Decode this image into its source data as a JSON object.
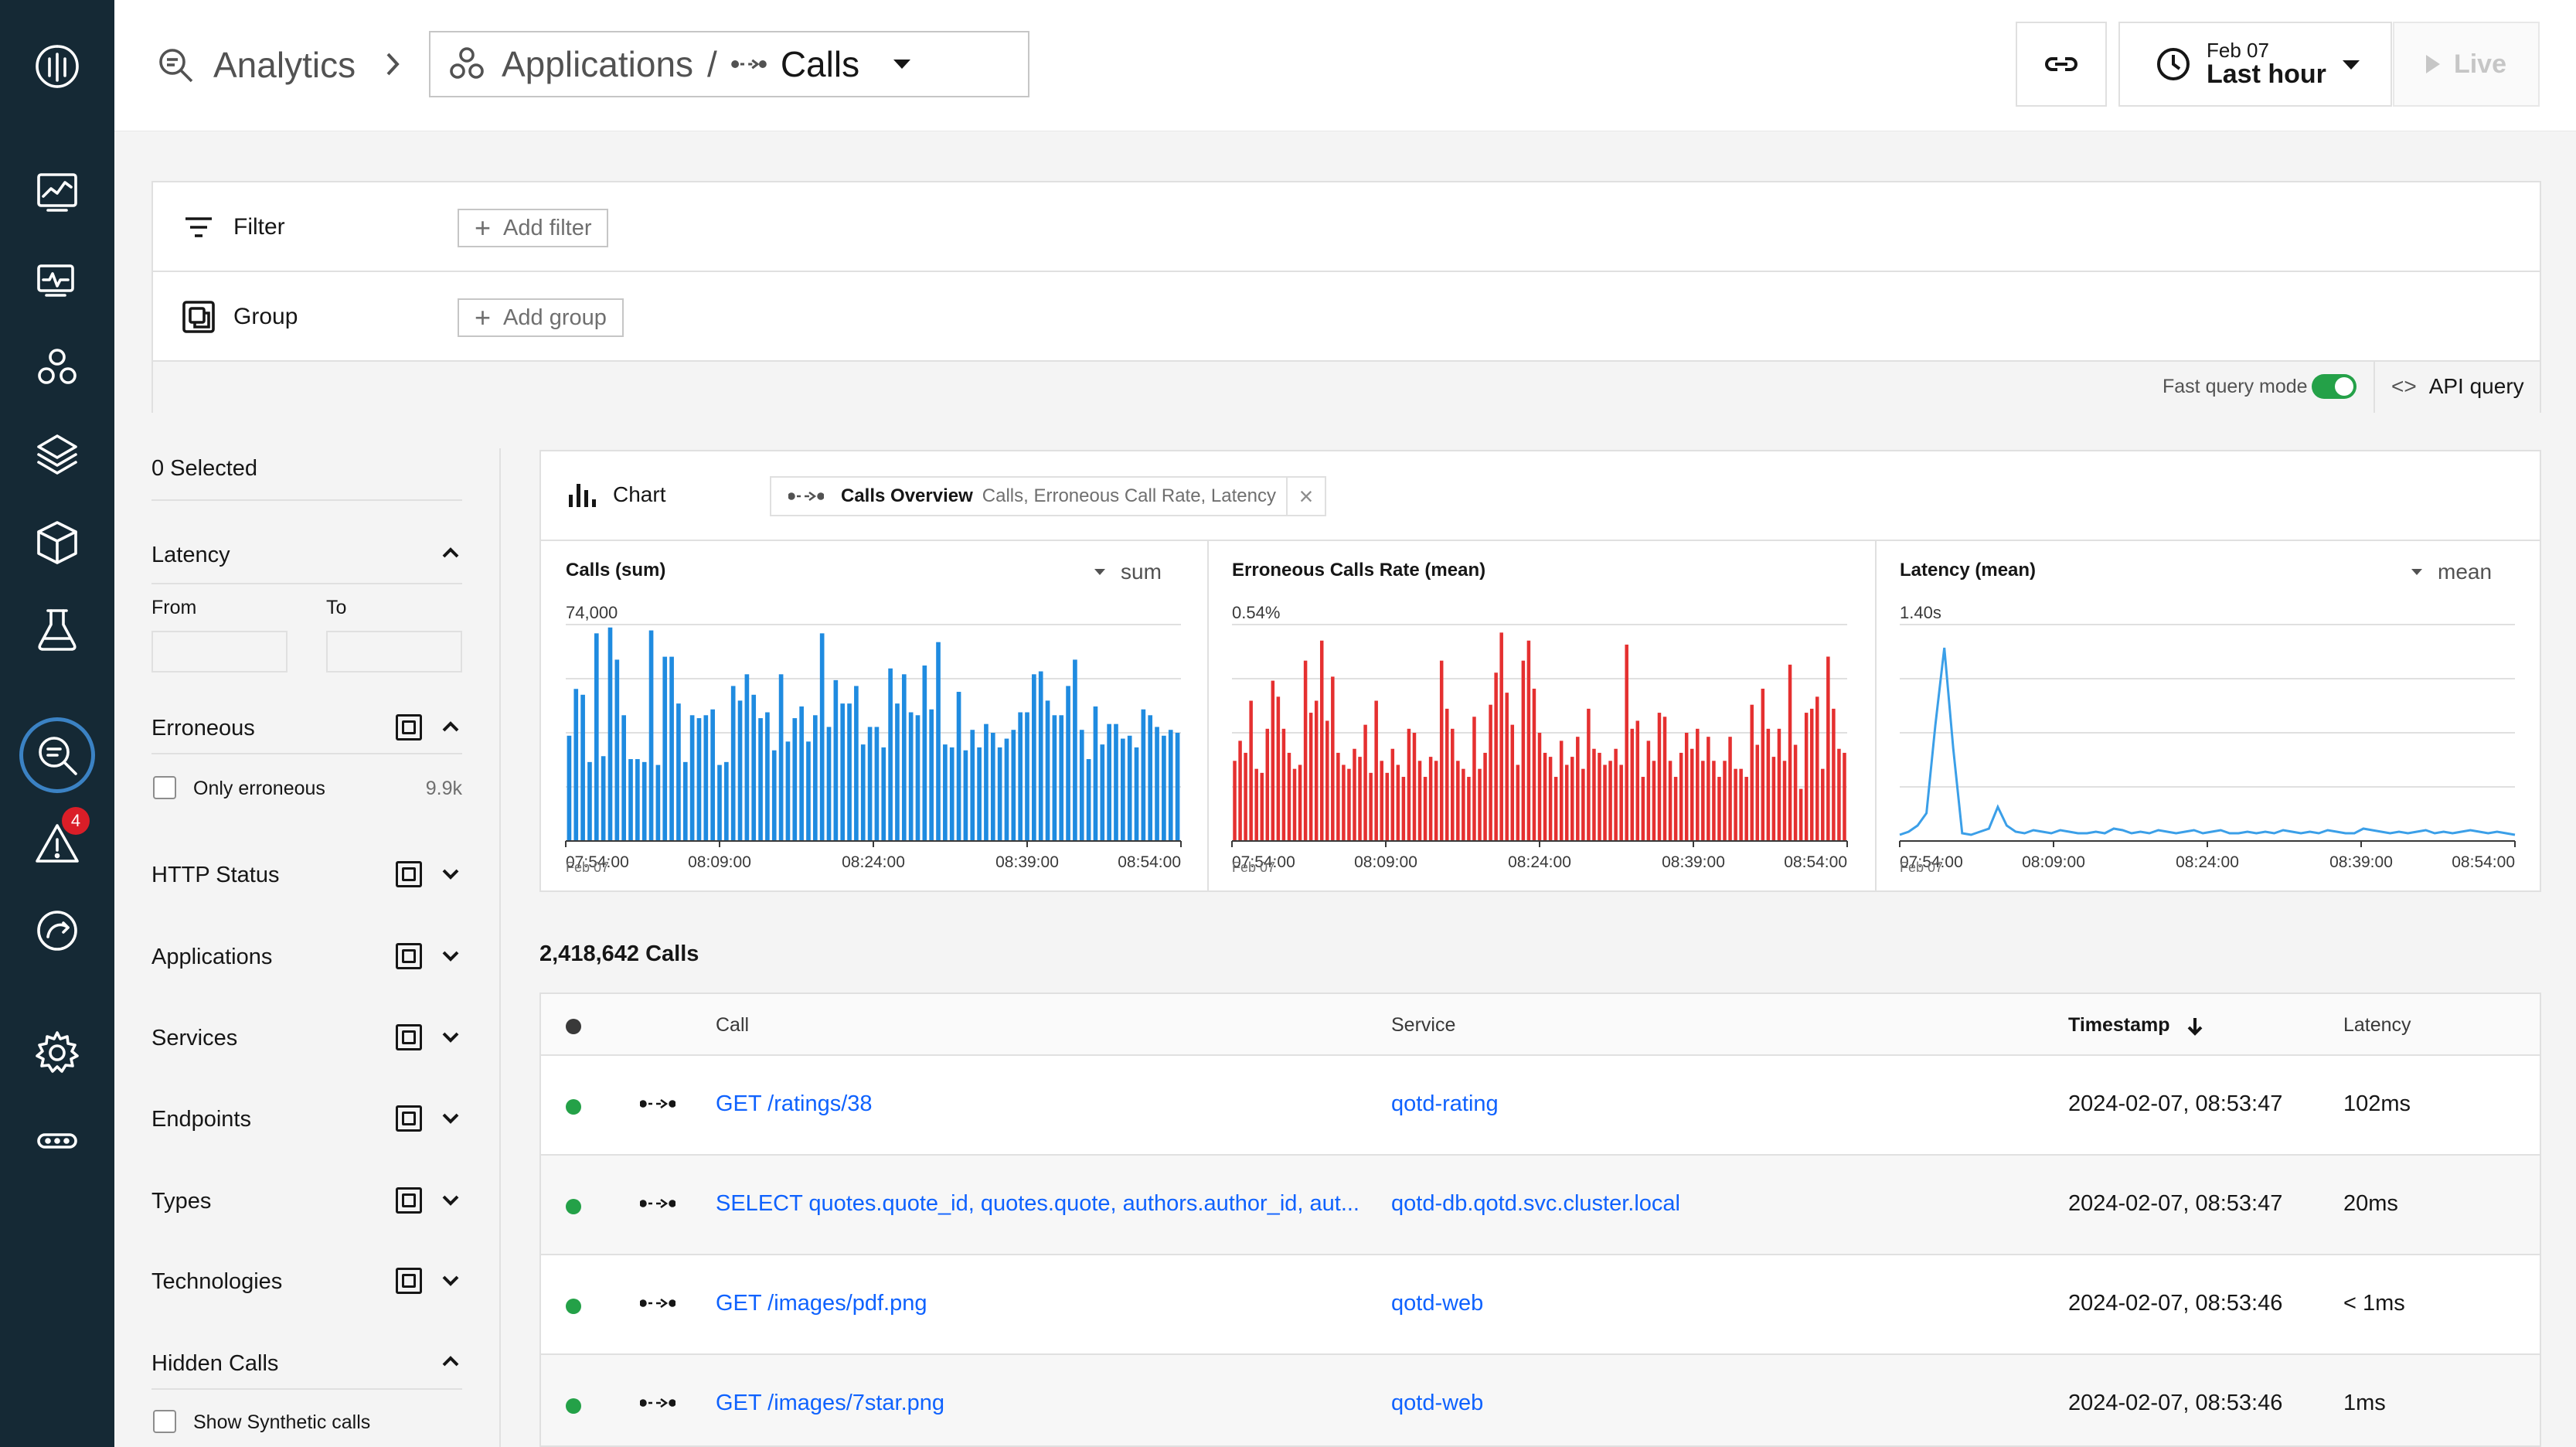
{
  "nav": {
    "items": [
      "Home dashboard",
      "Websites & Mobile Apps",
      "Applications",
      "Platforms",
      "Infrastructure",
      "Synthetic Monitoring",
      "Analytics",
      "Events",
      "Pipeline feedback",
      "Settings",
      "More"
    ],
    "events_badge": "4"
  },
  "header": {
    "breadcrumb_root": "Analytics",
    "app_label": "Applications",
    "separator": "/",
    "entity_label": "Calls",
    "time_date": "Feb 07",
    "time_range": "Last hour",
    "live_label": "Live"
  },
  "filters": {
    "filter_label": "Filter",
    "add_filter": "Add filter",
    "group_label": "Group",
    "add_group": "Add group",
    "fast_query_label": "Fast query mode",
    "fast_query_on": true,
    "api_query": "API query"
  },
  "facets": {
    "selected": "0 Selected",
    "latency": {
      "title": "Latency",
      "from": "From",
      "to": "To"
    },
    "erroneous": {
      "title": "Erroneous",
      "option": "Only erroneous",
      "count": "9.9k"
    },
    "http_status": "HTTP Status",
    "applications": "Applications",
    "services": "Services",
    "endpoints": "Endpoints",
    "types": "Types",
    "technologies": "Technologies",
    "hidden_calls": {
      "title": "Hidden Calls",
      "option": "Show Synthetic calls"
    }
  },
  "chart_panel": {
    "label": "Chart",
    "tag_title": "Calls Overview",
    "tag_metrics": "Calls, Erroneous Call Rate, Latency"
  },
  "chart_data": [
    {
      "type": "bar",
      "title": "Calls (sum)",
      "aggregation": "sum",
      "ymax_label": "74,000",
      "ylim": [
        0,
        74000
      ],
      "x_ticks": [
        "07:54:00",
        "08:09:00",
        "08:24:00",
        "08:39:00",
        "08:54:00"
      ],
      "x_sub": "Feb 07",
      "color": "#1f8be0",
      "values": [
        36000,
        52000,
        50000,
        27000,
        71000,
        29000,
        73000,
        62000,
        43000,
        28000,
        28000,
        27000,
        72000,
        26000,
        63000,
        63000,
        47000,
        27000,
        43000,
        42000,
        43000,
        45000,
        26000,
        27000,
        53000,
        48000,
        57000,
        50000,
        42000,
        44000,
        31000,
        57000,
        34000,
        42000,
        46000,
        34000,
        43000,
        71000,
        39000,
        55000,
        47000,
        47000,
        53000,
        33000,
        39000,
        39000,
        32000,
        59000,
        47000,
        57000,
        44000,
        43000,
        60000,
        45000,
        68000,
        33000,
        32000,
        51000,
        31000,
        38000,
        32000,
        40000,
        37000,
        32000,
        35000,
        38000,
        44000,
        44000,
        57000,
        58000,
        48000,
        43000,
        43000,
        53000,
        62000,
        38000,
        28000,
        46000,
        33000,
        40000,
        40000,
        35000,
        36000,
        32000,
        45000,
        43000,
        39000,
        36000,
        38000,
        37000
      ]
    },
    {
      "type": "bar",
      "title": "Erroneous Calls Rate (mean)",
      "ymax_label": "0.54%",
      "ylim": [
        0,
        0.54
      ],
      "x_ticks": [
        "07:54:00",
        "08:09:00",
        "08:24:00",
        "08:39:00",
        "08:54:00"
      ],
      "x_sub": "Feb 07",
      "color": "#e53030",
      "values": [
        0.2,
        0.25,
        0.22,
        0.35,
        0.18,
        0.17,
        0.28,
        0.4,
        0.36,
        0.28,
        0.22,
        0.18,
        0.19,
        0.45,
        0.32,
        0.35,
        0.5,
        0.3,
        0.41,
        0.22,
        0.19,
        0.18,
        0.23,
        0.21,
        0.29,
        0.17,
        0.35,
        0.2,
        0.17,
        0.23,
        0.19,
        0.16,
        0.28,
        0.27,
        0.2,
        0.16,
        0.21,
        0.2,
        0.45,
        0.33,
        0.28,
        0.2,
        0.18,
        0.16,
        0.31,
        0.18,
        0.22,
        0.34,
        0.42,
        0.52,
        0.37,
        0.29,
        0.19,
        0.45,
        0.5,
        0.38,
        0.27,
        0.22,
        0.21,
        0.16,
        0.25,
        0.19,
        0.21,
        0.26,
        0.18,
        0.33,
        0.23,
        0.22,
        0.19,
        0.2,
        0.23,
        0.19,
        0.49,
        0.28,
        0.3,
        0.16,
        0.25,
        0.2,
        0.32,
        0.31,
        0.2,
        0.16,
        0.22,
        0.27,
        0.23,
        0.28,
        0.2,
        0.26,
        0.2,
        0.16,
        0.2,
        0.26,
        0.18,
        0.18,
        0.16,
        0.34,
        0.24,
        0.38,
        0.28,
        0.21,
        0.28,
        0.2,
        0.44,
        0.24,
        0.13,
        0.32,
        0.33,
        0.36,
        0.18,
        0.46,
        0.33,
        0.23,
        0.22
      ]
    },
    {
      "type": "line",
      "title": "Latency (mean)",
      "aggregation": "mean",
      "ymax_label": "1.40s",
      "ylim": [
        0,
        1.4
      ],
      "x_ticks": [
        "07:54:00",
        "08:09:00",
        "08:24:00",
        "08:39:00",
        "08:54:00"
      ],
      "x_sub": "Feb 07",
      "color": "#3b9fe8",
      "values": [
        0.04,
        0.06,
        0.1,
        0.18,
        0.75,
        1.25,
        0.6,
        0.05,
        0.04,
        0.06,
        0.08,
        0.22,
        0.1,
        0.06,
        0.05,
        0.07,
        0.06,
        0.05,
        0.07,
        0.06,
        0.05,
        0.05,
        0.06,
        0.05,
        0.08,
        0.07,
        0.05,
        0.06,
        0.05,
        0.07,
        0.06,
        0.05,
        0.06,
        0.07,
        0.05,
        0.06,
        0.07,
        0.05,
        0.05,
        0.06,
        0.05,
        0.06,
        0.05,
        0.07,
        0.06,
        0.05,
        0.06,
        0.05,
        0.07,
        0.06,
        0.05,
        0.05,
        0.08,
        0.07,
        0.06,
        0.05,
        0.06,
        0.05,
        0.06,
        0.07,
        0.05,
        0.06,
        0.05,
        0.06,
        0.07,
        0.06,
        0.05,
        0.06,
        0.05,
        0.04
      ]
    }
  ],
  "table": {
    "count_label": "2,418,642 Calls",
    "columns": {
      "call": "Call",
      "service": "Service",
      "timestamp": "Timestamp",
      "latency": "Latency"
    },
    "rows": [
      {
        "call": "GET /ratings/38",
        "service": "qotd-rating",
        "timestamp": "2024-02-07, 08:53:47",
        "latency": "102ms"
      },
      {
        "call": "SELECT quotes.quote_id, quotes.quote, authors.author_id, aut...",
        "service": "qotd-db.qotd.svc.cluster.local",
        "timestamp": "2024-02-07, 08:53:47",
        "latency": "20ms"
      },
      {
        "call": "GET /images/pdf.png",
        "service": "qotd-web",
        "timestamp": "2024-02-07, 08:53:46",
        "latency": "< 1ms"
      },
      {
        "call": "GET /images/7star.png",
        "service": "qotd-web",
        "timestamp": "2024-02-07, 08:53:46",
        "latency": "1ms"
      }
    ]
  }
}
